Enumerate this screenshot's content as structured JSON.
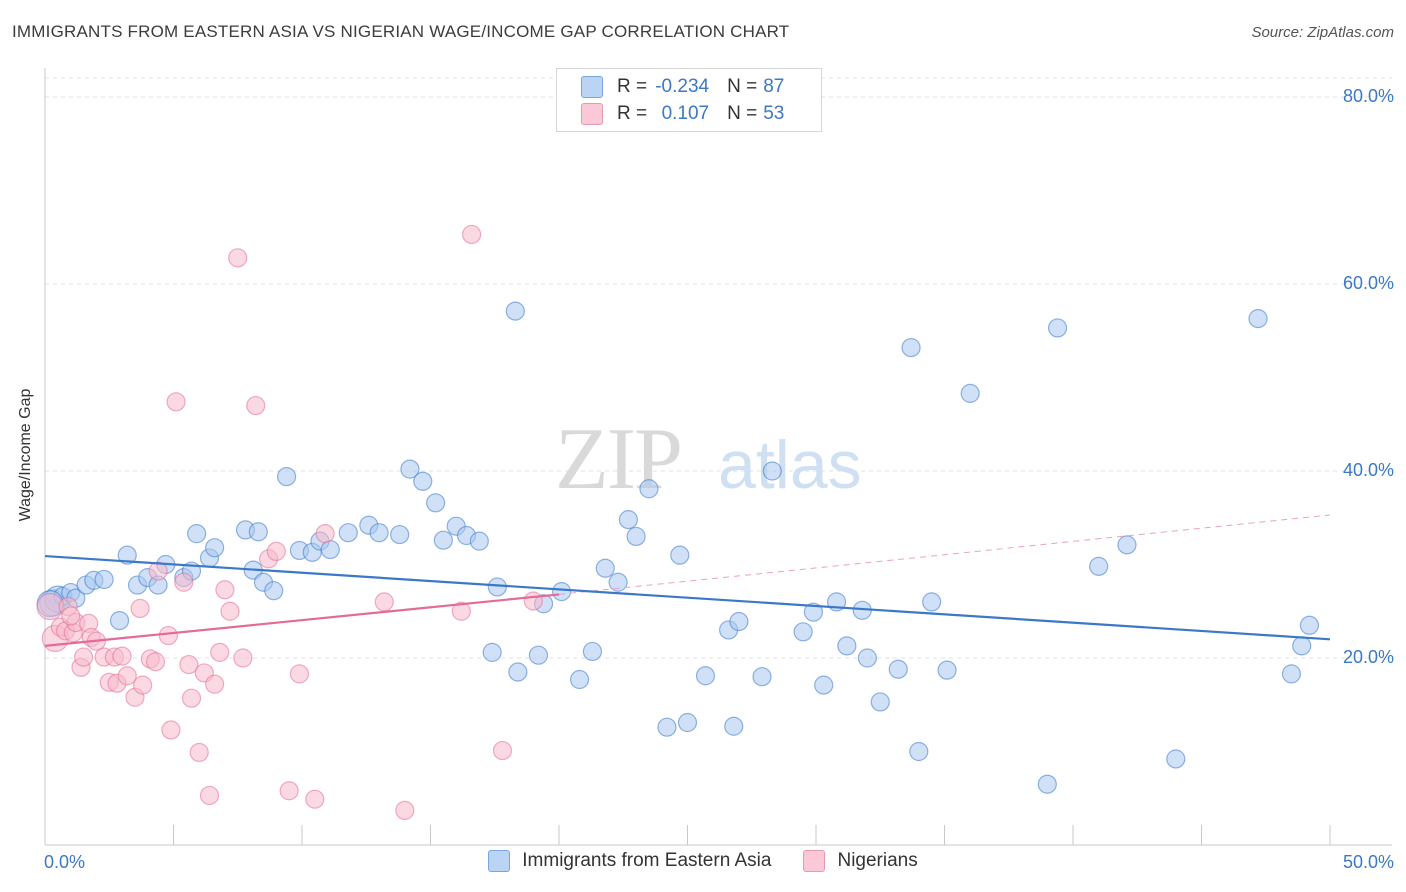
{
  "header": {
    "title": "IMMIGRANTS FROM EASTERN ASIA VS NIGERIAN WAGE/INCOME GAP CORRELATION CHART",
    "source": "Source: ZipAtlas.com"
  },
  "watermark": {
    "zip": "ZIP",
    "atlas": "atlas"
  },
  "legend": {
    "rows": [
      {
        "r_label": "R =",
        "r_value": "-0.234",
        "n_label": "N =",
        "n_value": "87",
        "color": "#a9c8f0"
      },
      {
        "r_label": "R =",
        "r_value": "0.107",
        "n_label": "N =",
        "n_value": "53",
        "color": "#f7b9cc"
      }
    ]
  },
  "chart_data": {
    "type": "scatter",
    "xlabel": "",
    "ylabel": "Wage/Income Gap",
    "xlim": [
      0,
      50
    ],
    "ylim": [
      0,
      80
    ],
    "x_tick_labels": [
      "0.0%",
      "50.0%"
    ],
    "y_ticks": [
      20,
      40,
      60,
      80
    ],
    "y_tick_labels": [
      "20.0%",
      "40.0%",
      "60.0%",
      "80.0%"
    ],
    "grid": true,
    "legend_position": "bottom",
    "series": [
      {
        "name": "Immigrants from Eastern Asia",
        "color": "#3b78c8",
        "fill": "#a9c8f0",
        "trend": {
          "x": [
            0,
            50
          ],
          "y": [
            30.9,
            22.0
          ]
        },
        "points": [
          [
            0.3,
            25.9
          ],
          [
            0.5,
            26.3
          ],
          [
            0.7,
            26.6
          ],
          [
            1.0,
            27.0
          ],
          [
            1.2,
            26.4
          ],
          [
            1.6,
            27.8
          ],
          [
            1.9,
            28.3
          ],
          [
            2.3,
            28.4
          ],
          [
            2.9,
            24.0
          ],
          [
            3.2,
            31.0
          ],
          [
            3.6,
            27.8
          ],
          [
            4.0,
            28.6
          ],
          [
            4.4,
            27.8
          ],
          [
            4.7,
            30.0
          ],
          [
            5.4,
            28.6
          ],
          [
            5.7,
            29.3
          ],
          [
            5.9,
            33.3
          ],
          [
            6.4,
            30.7
          ],
          [
            6.6,
            31.8
          ],
          [
            7.8,
            33.7
          ],
          [
            8.3,
            33.5
          ],
          [
            8.1,
            29.4
          ],
          [
            8.5,
            28.1
          ],
          [
            8.9,
            27.2
          ],
          [
            9.4,
            39.4
          ],
          [
            9.9,
            31.5
          ],
          [
            10.4,
            31.3
          ],
          [
            10.7,
            32.5
          ],
          [
            11.1,
            31.6
          ],
          [
            11.8,
            33.4
          ],
          [
            12.6,
            34.2
          ],
          [
            13.0,
            33.4
          ],
          [
            13.8,
            33.2
          ],
          [
            14.2,
            40.2
          ],
          [
            14.7,
            38.9
          ],
          [
            15.2,
            36.6
          ],
          [
            15.5,
            32.6
          ],
          [
            16.0,
            34.1
          ],
          [
            16.4,
            33.1
          ],
          [
            16.9,
            32.5
          ],
          [
            17.4,
            20.6
          ],
          [
            17.6,
            27.6
          ],
          [
            18.4,
            18.5
          ],
          [
            18.3,
            57.1
          ],
          [
            19.4,
            25.8
          ],
          [
            19.2,
            20.3
          ],
          [
            20.1,
            27.1
          ],
          [
            20.8,
            17.7
          ],
          [
            21.3,
            20.7
          ],
          [
            21.8,
            29.6
          ],
          [
            22.3,
            28.1
          ],
          [
            22.7,
            34.8
          ],
          [
            23.0,
            33.0
          ],
          [
            23.5,
            38.1
          ],
          [
            24.2,
            12.6
          ],
          [
            24.7,
            31.0
          ],
          [
            25.0,
            13.1
          ],
          [
            25.7,
            18.1
          ],
          [
            26.6,
            23.0
          ],
          [
            27.0,
            23.9
          ],
          [
            26.8,
            12.7
          ],
          [
            27.9,
            18.0
          ],
          [
            28.3,
            40.0
          ],
          [
            29.5,
            22.8
          ],
          [
            29.9,
            24.9
          ],
          [
            30.3,
            17.1
          ],
          [
            30.8,
            26.0
          ],
          [
            31.2,
            21.3
          ],
          [
            31.8,
            25.1
          ],
          [
            32.0,
            20.0
          ],
          [
            32.5,
            15.3
          ],
          [
            33.2,
            18.8
          ],
          [
            33.7,
            53.2
          ],
          [
            34.0,
            10.0
          ],
          [
            34.5,
            26.0
          ],
          [
            35.1,
            18.7
          ],
          [
            36.0,
            48.3
          ],
          [
            39.0,
            6.5
          ],
          [
            39.4,
            55.3
          ],
          [
            41.0,
            29.8
          ],
          [
            42.1,
            32.1
          ],
          [
            44.0,
            9.2
          ],
          [
            47.2,
            56.3
          ],
          [
            48.5,
            18.3
          ],
          [
            48.9,
            21.3
          ],
          [
            49.2,
            23.5
          ],
          [
            0.2,
            25.8
          ]
        ]
      },
      {
        "name": "Nigerians",
        "color": "#e36b96",
        "fill": "#f7b9cc",
        "trend": {
          "x": [
            0,
            20
          ],
          "y": [
            21.3,
            26.8
          ]
        },
        "trend_extended": {
          "x": [
            20,
            50
          ],
          "y": [
            26.8,
            35.3
          ]
        },
        "points": [
          [
            0.2,
            25.5
          ],
          [
            0.4,
            22.1
          ],
          [
            0.6,
            23.3
          ],
          [
            0.8,
            22.9
          ],
          [
            0.9,
            25.5
          ],
          [
            1.1,
            22.7
          ],
          [
            1.2,
            23.8
          ],
          [
            1.4,
            19.0
          ],
          [
            1.5,
            20.1
          ],
          [
            1.7,
            23.7
          ],
          [
            1.8,
            22.2
          ],
          [
            2.0,
            21.8
          ],
          [
            2.3,
            20.1
          ],
          [
            2.5,
            17.4
          ],
          [
            2.7,
            20.1
          ],
          [
            2.8,
            17.3
          ],
          [
            3.0,
            20.2
          ],
          [
            3.2,
            18.1
          ],
          [
            3.5,
            15.8
          ],
          [
            3.7,
            25.3
          ],
          [
            3.8,
            17.1
          ],
          [
            4.1,
            19.9
          ],
          [
            4.3,
            19.6
          ],
          [
            4.4,
            29.3
          ],
          [
            4.8,
            22.4
          ],
          [
            4.9,
            12.3
          ],
          [
            5.1,
            47.4
          ],
          [
            5.4,
            28.1
          ],
          [
            5.6,
            19.3
          ],
          [
            5.7,
            15.7
          ],
          [
            6.0,
            9.9
          ],
          [
            6.2,
            18.4
          ],
          [
            6.4,
            5.3
          ],
          [
            6.6,
            17.2
          ],
          [
            6.8,
            20.6
          ],
          [
            7.0,
            27.3
          ],
          [
            7.2,
            25.0
          ],
          [
            7.5,
            62.8
          ],
          [
            7.7,
            20.0
          ],
          [
            8.2,
            47.0
          ],
          [
            8.7,
            30.6
          ],
          [
            9.0,
            31.4
          ],
          [
            9.5,
            5.8
          ],
          [
            9.9,
            18.3
          ],
          [
            10.5,
            4.9
          ],
          [
            10.9,
            33.3
          ],
          [
            13.2,
            26.0
          ],
          [
            14.0,
            3.7
          ],
          [
            16.2,
            25.0
          ],
          [
            16.6,
            65.3
          ],
          [
            17.8,
            10.1
          ],
          [
            19.0,
            26.1
          ],
          [
            1.0,
            24.5
          ]
        ]
      }
    ]
  }
}
